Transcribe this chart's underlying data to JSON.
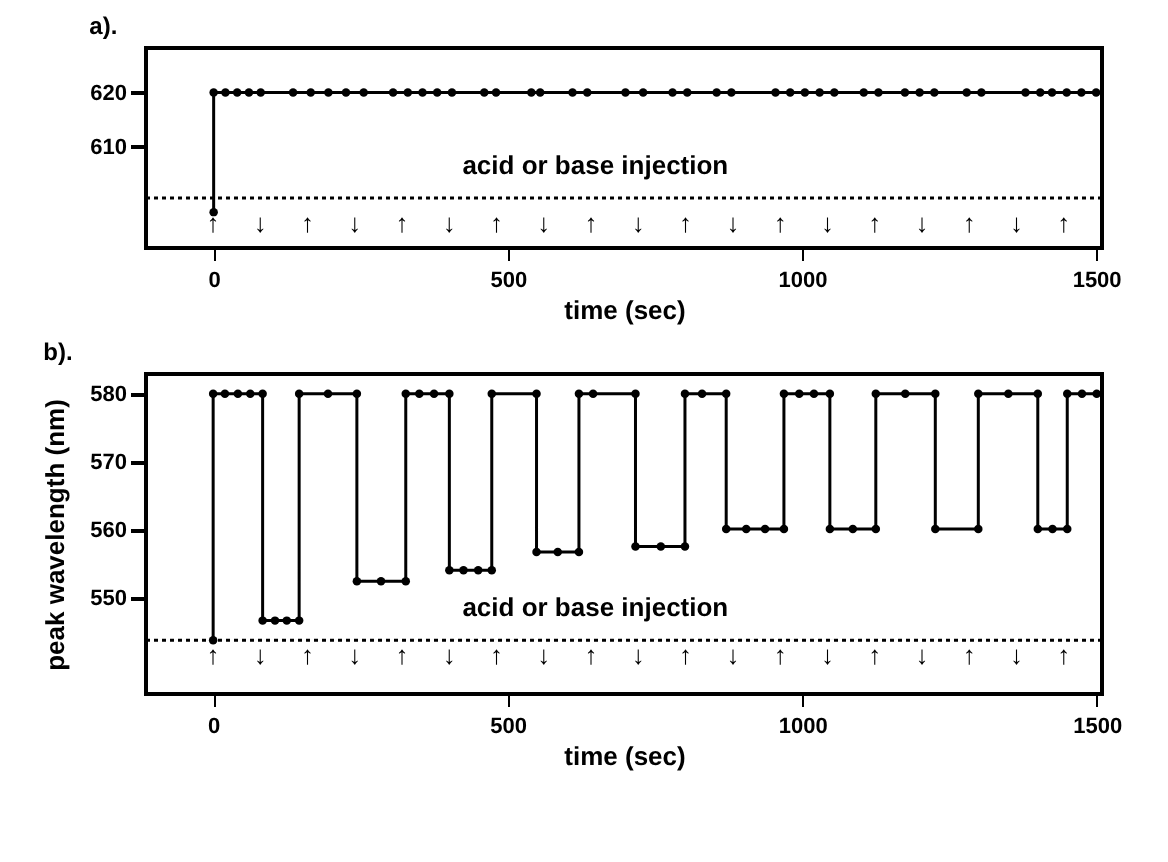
{
  "chart_data": [
    {
      "type": "line",
      "title": "a).",
      "xlabel": "time (sec)",
      "xlim": [
        -115,
        1510
      ],
      "xticks": [
        0,
        500,
        1000,
        1500
      ],
      "ylim": [
        591.4,
        628.2
      ],
      "yticks": [
        610,
        620
      ],
      "grid": false,
      "marker": "circle",
      "line_style": "solid",
      "series": [
        {
          "color": "#000000",
          "x": [
            0,
            0,
            20,
            40,
            60,
            80,
            135,
            165,
            195,
            225,
            255,
            305,
            330,
            355,
            380,
            405,
            460,
            480,
            540,
            555,
            610,
            635,
            700,
            730,
            780,
            805,
            855,
            880,
            955,
            980,
            1005,
            1030,
            1055,
            1105,
            1130,
            1175,
            1200,
            1225,
            1280,
            1305,
            1380,
            1405,
            1425,
            1450,
            1475,
            1500
          ],
          "values": [
            598,
            620,
            620,
            620,
            620,
            620,
            620,
            620,
            620,
            620,
            620,
            620,
            620,
            620,
            620,
            620,
            620,
            620,
            620,
            620,
            620,
            620,
            620,
            620,
            620,
            620,
            620,
            620,
            620,
            620,
            620,
            620,
            620,
            620,
            620,
            620,
            620,
            620,
            620,
            620,
            620,
            620,
            620,
            620,
            620,
            620
          ]
        }
      ],
      "ref_lines": [
        {
          "axis": "y",
          "value": 600.6,
          "line_style": "dotted",
          "color": "#000000"
        }
      ],
      "annotations": [
        "acid or base injection",
        "↑",
        "↓",
        "↑",
        "↓",
        "↑",
        "↓",
        "↑",
        "↓",
        "↑",
        "↓",
        "↑",
        "↓",
        "↑",
        "↓",
        "↑",
        "↓",
        "↑",
        "↓",
        "↑"
      ]
    },
    {
      "type": "line",
      "title": "b).",
      "xlabel": "time (sec)",
      "ylabel": "peak wavelength (nm)",
      "xlim": [
        -114,
        1509
      ],
      "xticks": [
        0,
        500,
        1000,
        1500
      ],
      "ylim": [
        535.8,
        582.9
      ],
      "yticks": [
        550,
        560,
        570,
        580
      ],
      "grid": false,
      "marker": "circle",
      "line_style": "solid",
      "series": [
        {
          "color": "#000000",
          "x": [
            0,
            0,
            20,
            42,
            63,
            84,
            84,
            105,
            125,
            146,
            146,
            195,
            244,
            244,
            285,
            327,
            327,
            350,
            375,
            401,
            401,
            425,
            450,
            473,
            473,
            549,
            549,
            585,
            621,
            621,
            645,
            717,
            717,
            760,
            801,
            801,
            830,
            871,
            871,
            905,
            937,
            969,
            969,
            995,
            1020,
            1047,
            1047,
            1086,
            1125,
            1125,
            1175,
            1226,
            1226,
            1299,
            1299,
            1350,
            1400,
            1400,
            1425,
            1450,
            1450,
            1475,
            1500
          ],
          "values": [
            543.7,
            580,
            580,
            580,
            580,
            580,
            546.6,
            546.6,
            546.6,
            546.6,
            580,
            580,
            580,
            552.4,
            552.4,
            552.4,
            580,
            580,
            580,
            580,
            554,
            554,
            554,
            554,
            580,
            580,
            556.7,
            556.7,
            556.7,
            580,
            580,
            580,
            557.5,
            557.5,
            557.5,
            580,
            580,
            580,
            560.1,
            560.1,
            560.1,
            560.1,
            580,
            580,
            580,
            580,
            560.1,
            560.1,
            560.1,
            580,
            580,
            580,
            560.1,
            560.1,
            580,
            580,
            580,
            560.1,
            560.1,
            560.1,
            580,
            580,
            580
          ]
        }
      ],
      "ref_lines": [
        {
          "axis": "y",
          "value": 543.7,
          "line_style": "dotted",
          "color": "#000000"
        }
      ],
      "annotations": [
        "acid or base injection",
        "↑",
        "↓",
        "↑",
        "↓",
        "↑",
        "↓",
        "↑",
        "↓",
        "↑",
        "↓",
        "↑",
        "↓",
        "↑",
        "↓",
        "↑",
        "↓",
        "↑",
        "↓",
        "↑"
      ]
    }
  ]
}
